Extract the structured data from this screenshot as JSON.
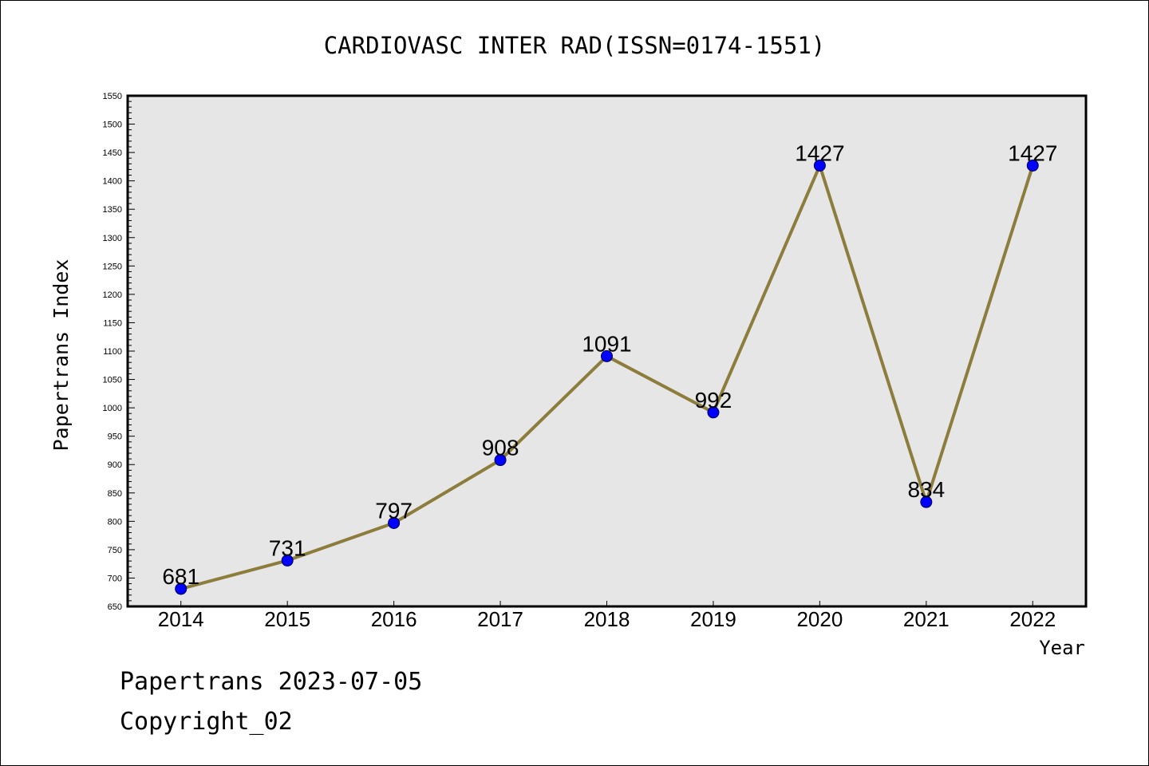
{
  "chart_data": {
    "type": "line",
    "title": "CARDIOVASC INTER RAD(ISSN=0174-1551)",
    "xlabel": "Year",
    "ylabel": "Papertrans Index",
    "categories": [
      "2014",
      "2015",
      "2016",
      "2017",
      "2018",
      "2019",
      "2020",
      "2021",
      "2022"
    ],
    "series": [
      {
        "values": [
          681,
          731,
          797,
          908,
          1091,
          992,
          1427,
          834,
          1427
        ]
      }
    ],
    "ylim": [
      650,
      1550
    ],
    "yticks": [
      650,
      700,
      750,
      800,
      850,
      900,
      950,
      1000,
      1050,
      1100,
      1150,
      1200,
      1250,
      1300,
      1350,
      1400,
      1450,
      1500,
      1550
    ],
    "data_labels": true,
    "grid": false,
    "colors": {
      "line": "#8c7d3c",
      "marker": "#0000ff",
      "marker_edge": "#00004d",
      "plot_background": "#e6e6e6"
    }
  },
  "footer": {
    "date_line": "Papertrans 2023-07-05",
    "copyright": "Copyright_02"
  }
}
